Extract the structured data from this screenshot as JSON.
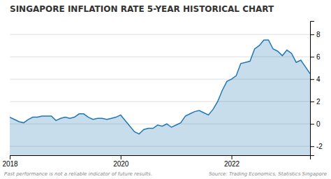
{
  "chart_data": {
    "type": "area",
    "title": "SINGAPORE INFLATION RATE 5-YEAR HISTORICAL CHART",
    "annotations": [
      "Past performance is not a reliable indicator of future results.",
      "Source: Trading Economics, Statistics Singapore"
    ],
    "categories": [
      "2018",
      null,
      null,
      null,
      null,
      null,
      null,
      null,
      null,
      null,
      null,
      null,
      null,
      null,
      null,
      null,
      null,
      null,
      null,
      null,
      null,
      null,
      null,
      null,
      "2020",
      null,
      null,
      null,
      null,
      null,
      null,
      null,
      null,
      null,
      null,
      null,
      null,
      null,
      null,
      null,
      null,
      null,
      null,
      null,
      null,
      null,
      null,
      null,
      "2022",
      null,
      null,
      null,
      null,
      null,
      null,
      null,
      null,
      null,
      null,
      null,
      null,
      null,
      null,
      null,
      null,
      null
    ],
    "values": [
      0.6,
      0.4,
      0.2,
      0.1,
      0.4,
      0.6,
      0.6,
      0.7,
      0.7,
      0.7,
      0.3,
      0.5,
      0.6,
      0.5,
      0.6,
      0.9,
      0.9,
      0.6,
      0.4,
      0.5,
      0.5,
      0.4,
      0.5,
      0.6,
      0.8,
      0.3,
      -0.2,
      -0.7,
      -0.9,
      -0.5,
      -0.4,
      -0.4,
      -0.1,
      -0.2,
      0.0,
      -0.3,
      -0.1,
      0.1,
      0.7,
      0.9,
      1.1,
      1.2,
      1.0,
      0.8,
      1.3,
      2.0,
      3.0,
      3.8,
      4.0,
      4.3,
      5.4,
      5.5,
      5.6,
      6.7,
      7.0,
      7.5,
      7.5,
      6.7,
      6.5,
      6.1,
      6.6,
      6.3,
      5.5,
      5.7,
      5.1,
      4.5
    ],
    "ylim": [
      -2.8,
      9.2
    ],
    "yticks": [
      -2,
      0,
      2,
      4,
      6,
      8
    ],
    "grid": true
  }
}
